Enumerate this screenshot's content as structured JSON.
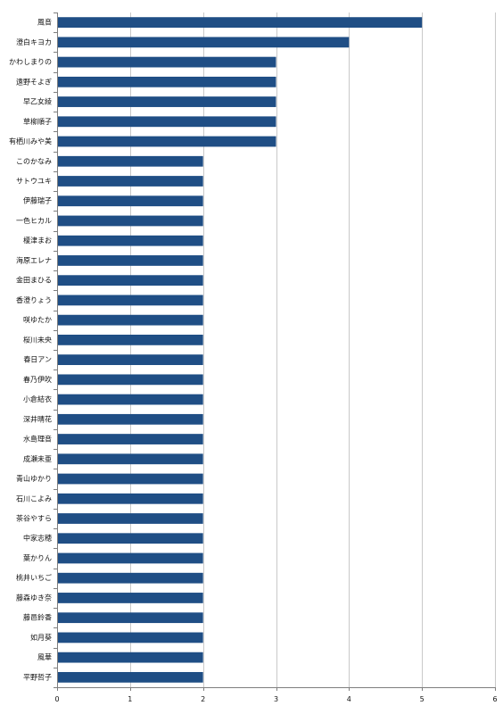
{
  "chart_data": {
    "type": "bar",
    "orientation": "horizontal",
    "title": "",
    "xlabel": "",
    "ylabel": "",
    "xlim": [
      0,
      6
    ],
    "x_ticks": [
      0,
      1,
      2,
      3,
      4,
      5,
      6
    ],
    "grid": true,
    "legend": "none",
    "bar_color": "#1f4e85",
    "categories": [
      "風音",
      "澄白キヨカ",
      "かわしまりの",
      "遠野そよぎ",
      "早乙女綾",
      "草柳順子",
      "有栖川みや美",
      "このかなみ",
      "サトウユキ",
      "伊藤瑞子",
      "一色ヒカル",
      "榎津まお",
      "海原エレナ",
      "金田まひる",
      "香澄りょう",
      "咲ゆたか",
      "桜川未央",
      "春日アン",
      "春乃伊吹",
      "小倉結衣",
      "深井晴花",
      "水島理音",
      "成瀬未亜",
      "青山ゆかり",
      "石川こよみ",
      "茶谷やすら",
      "中家志穂",
      "葉かりん",
      "桃井いちご",
      "藤森ゆき奈",
      "藤邑鈴香",
      "如月葵",
      "風華",
      "平野哲子"
    ],
    "values": [
      5,
      4,
      3,
      3,
      3,
      3,
      3,
      2,
      2,
      2,
      2,
      2,
      2,
      2,
      2,
      2,
      2,
      2,
      2,
      2,
      2,
      2,
      2,
      2,
      2,
      2,
      2,
      2,
      2,
      2,
      2,
      2,
      2,
      2
    ]
  }
}
